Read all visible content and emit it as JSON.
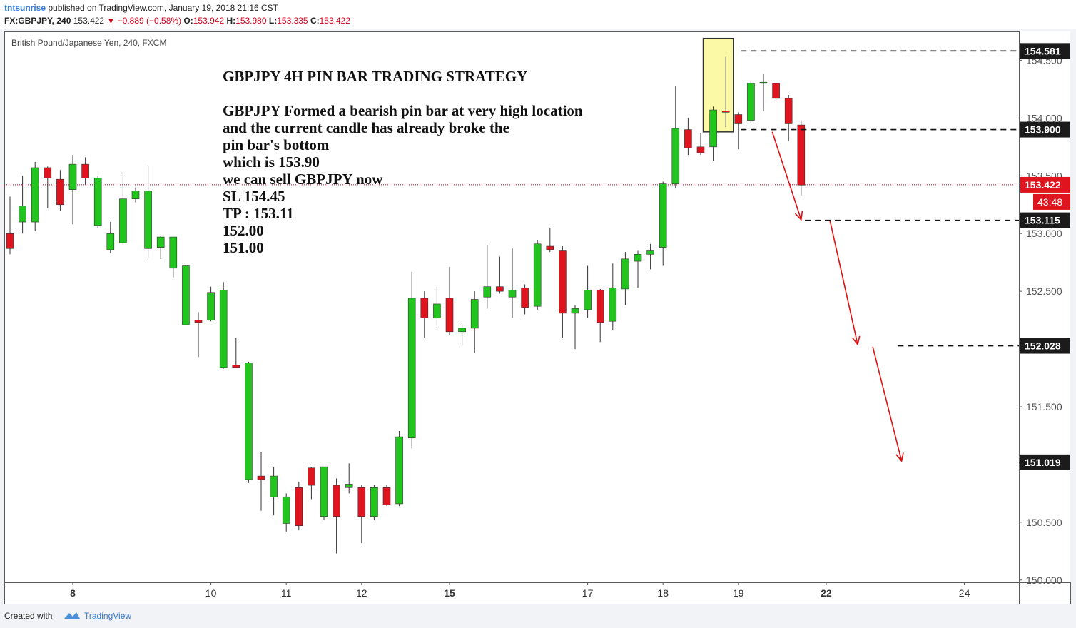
{
  "header": {
    "author": "tntsunrise",
    "published": " published on TradingView.com, January 19, 2018 21:16 CST",
    "symbol": "FX:GBPJPY, 240",
    "last": "153.422",
    "change": "▼ −0.889 (−0.58%)",
    "ohlc_o_label": "O:",
    "ohlc_o": "153.942",
    "ohlc_h_label": "H:",
    "ohlc_h": "153.980",
    "ohlc_l_label": "L:",
    "ohlc_l": "153.335",
    "ohlc_c_label": "C:",
    "ohlc_c": "153.422"
  },
  "footer": {
    "created_with": "Created with",
    "brand": "TradingView",
    "logo_icon": "tradingview-cloud-icon"
  },
  "colors": {
    "up": "#22c51e",
    "down": "#e0141e",
    "price_line": "#d0021b",
    "label_dark": "#1b1b1b",
    "highlight": "#fbf8a6",
    "arrow": "#e01010"
  },
  "chart_data": {
    "type": "candlestick",
    "instrument_label": "British Pound/Japanese Yen, 240, FXCM",
    "ylim": [
      149.98,
      154.75
    ],
    "y_ticks": [
      "150.000",
      "150.500",
      "151.000",
      "151.500",
      "152.000",
      "152.500",
      "153.000",
      "153.500",
      "154.000",
      "154.500"
    ],
    "x_ticks": [
      {
        "label": "8",
        "bold": true,
        "index": 5
      },
      {
        "label": "10",
        "bold": false,
        "index": 16
      },
      {
        "label": "11",
        "bold": false,
        "index": 22
      },
      {
        "label": "12",
        "bold": false,
        "index": 28
      },
      {
        "label": "15",
        "bold": true,
        "index": 35
      },
      {
        "label": "17",
        "bold": false,
        "index": 46
      },
      {
        "label": "18",
        "bold": false,
        "index": 52
      },
      {
        "label": "19",
        "bold": false,
        "index": 58
      },
      {
        "label": "22",
        "bold": true,
        "index": 65
      },
      {
        "label": "24",
        "bold": false,
        "index": 76
      }
    ],
    "candles": [
      [
        153.0,
        153.32,
        152.82,
        152.87
      ],
      [
        153.1,
        153.5,
        153.0,
        153.24
      ],
      [
        153.1,
        153.62,
        153.02,
        153.57
      ],
      [
        153.57,
        153.58,
        153.22,
        153.48
      ],
      [
        153.47,
        153.55,
        153.2,
        153.25
      ],
      [
        153.38,
        153.68,
        153.08,
        153.6
      ],
      [
        153.6,
        153.66,
        153.42,
        153.48
      ],
      [
        153.07,
        153.5,
        153.05,
        153.48
      ],
      [
        152.86,
        153.1,
        152.83,
        153.0
      ],
      [
        152.92,
        153.52,
        152.9,
        153.3
      ],
      [
        153.3,
        153.4,
        153.27,
        153.37
      ],
      [
        152.87,
        153.59,
        152.79,
        153.37
      ],
      [
        152.88,
        152.98,
        152.78,
        152.97
      ],
      [
        152.7,
        152.96,
        152.62,
        152.97
      ],
      [
        152.21,
        152.73,
        152.22,
        152.72
      ],
      [
        152.25,
        152.32,
        151.93,
        152.23
      ],
      [
        152.25,
        152.54,
        152.24,
        152.49
      ],
      [
        151.84,
        152.58,
        151.83,
        152.51
      ],
      [
        151.86,
        152.1,
        151.85,
        151.84
      ],
      [
        150.87,
        151.89,
        150.84,
        151.88
      ],
      [
        150.9,
        151.11,
        150.6,
        150.87
      ],
      [
        150.72,
        150.98,
        150.56,
        150.9
      ],
      [
        150.49,
        150.75,
        150.42,
        150.72
      ],
      [
        150.8,
        150.85,
        150.43,
        150.47
      ],
      [
        150.97,
        150.98,
        150.7,
        150.82
      ],
      [
        150.55,
        150.98,
        150.52,
        150.98
      ],
      [
        150.82,
        150.88,
        150.23,
        150.55
      ],
      [
        150.8,
        151.01,
        150.75,
        150.83
      ],
      [
        150.8,
        150.82,
        150.32,
        150.55
      ],
      [
        150.55,
        150.82,
        150.52,
        150.8
      ],
      [
        150.8,
        150.82,
        150.64,
        150.65
      ],
      [
        150.66,
        151.29,
        150.64,
        151.24
      ],
      [
        151.23,
        152.67,
        151.14,
        152.44
      ],
      [
        152.44,
        152.5,
        152.1,
        152.27
      ],
      [
        152.27,
        152.54,
        152.2,
        152.39
      ],
      [
        152.44,
        152.71,
        152.12,
        152.15
      ],
      [
        152.15,
        152.21,
        152.03,
        152.18
      ],
      [
        152.18,
        152.5,
        151.97,
        152.43
      ],
      [
        152.45,
        152.9,
        152.35,
        152.54
      ],
      [
        152.54,
        152.8,
        152.48,
        152.5
      ],
      [
        152.45,
        152.87,
        152.27,
        152.51
      ],
      [
        152.53,
        152.56,
        152.3,
        152.36
      ],
      [
        152.37,
        152.94,
        152.34,
        152.91
      ],
      [
        152.89,
        153.05,
        152.84,
        152.86
      ],
      [
        152.85,
        152.89,
        152.1,
        152.31
      ],
      [
        152.31,
        152.38,
        152.0,
        152.35
      ],
      [
        152.34,
        152.72,
        152.27,
        152.51
      ],
      [
        152.51,
        152.52,
        152.06,
        152.23
      ],
      [
        152.24,
        152.74,
        152.16,
        152.53
      ],
      [
        152.52,
        152.84,
        152.38,
        152.78
      ],
      [
        152.76,
        152.85,
        152.53,
        152.82
      ],
      [
        152.82,
        152.91,
        152.69,
        152.85
      ],
      [
        152.88,
        153.45,
        152.72,
        153.43
      ],
      [
        153.43,
        154.28,
        153.39,
        153.91
      ],
      [
        153.9,
        154.0,
        153.68,
        153.74
      ],
      [
        153.75,
        153.87,
        153.68,
        153.7
      ],
      [
        153.75,
        154.1,
        153.63,
        154.07
      ],
      [
        154.06,
        154.53,
        153.92,
        154.05
      ],
      [
        154.03,
        154.05,
        153.73,
        153.95
      ],
      [
        153.98,
        154.32,
        153.96,
        154.3
      ],
      [
        154.3,
        154.38,
        154.06,
        154.31
      ],
      [
        154.3,
        154.31,
        154.16,
        154.17
      ],
      [
        154.17,
        154.2,
        153.8,
        153.95
      ],
      [
        153.94,
        153.98,
        153.33,
        153.42
      ]
    ],
    "price_line": 153.422,
    "countdown": "43:48",
    "levels": [
      {
        "label": "154.581",
        "value": 154.581,
        "color": "#1b1b1b",
        "x_from_index": 58.2
      },
      {
        "label": "153.900",
        "value": 153.9,
        "color": "#1b1b1b",
        "x_from_index": 58.2
      },
      {
        "label": "153.422",
        "value": 153.422,
        "color": "#e0141e",
        "x_from_index": -1
      },
      {
        "label": "153.115",
        "value": 153.115,
        "color": "#1b1b1b",
        "x_from_index": 63.3
      },
      {
        "label": "152.028",
        "value": 152.028,
        "color": "#1b1b1b",
        "x_from_index": 70.7
      },
      {
        "label": "151.019",
        "value": 151.019,
        "color": "#1b1b1b",
        "x_from_index": 80.5
      }
    ],
    "pin_bar_box": {
      "from_index": 55.2,
      "to_index": 57.6,
      "low": 153.88,
      "high": 154.69
    },
    "arrows": [
      {
        "from": [
          60.7,
          153.88
        ],
        "to": [
          63.0,
          153.12
        ]
      },
      {
        "from": [
          65.3,
          153.11
        ],
        "to": [
          67.5,
          152.04
        ]
      },
      {
        "from": [
          68.7,
          152.02
        ],
        "to": [
          71.0,
          151.03
        ]
      }
    ],
    "annotation": {
      "title": "GBPJPY 4H PIN BAR TRADING STRATEGY",
      "lines": [
        "GBPJPY Formed a bearish pin bar at very high location",
        "and the current candle has already broke the",
        "pin bar's bottom",
        "which is 153.90",
        "we can sell GBPJPY now",
        "SL 154.45",
        "TP : 153.11",
        "152.00",
        "151.00"
      ]
    }
  }
}
